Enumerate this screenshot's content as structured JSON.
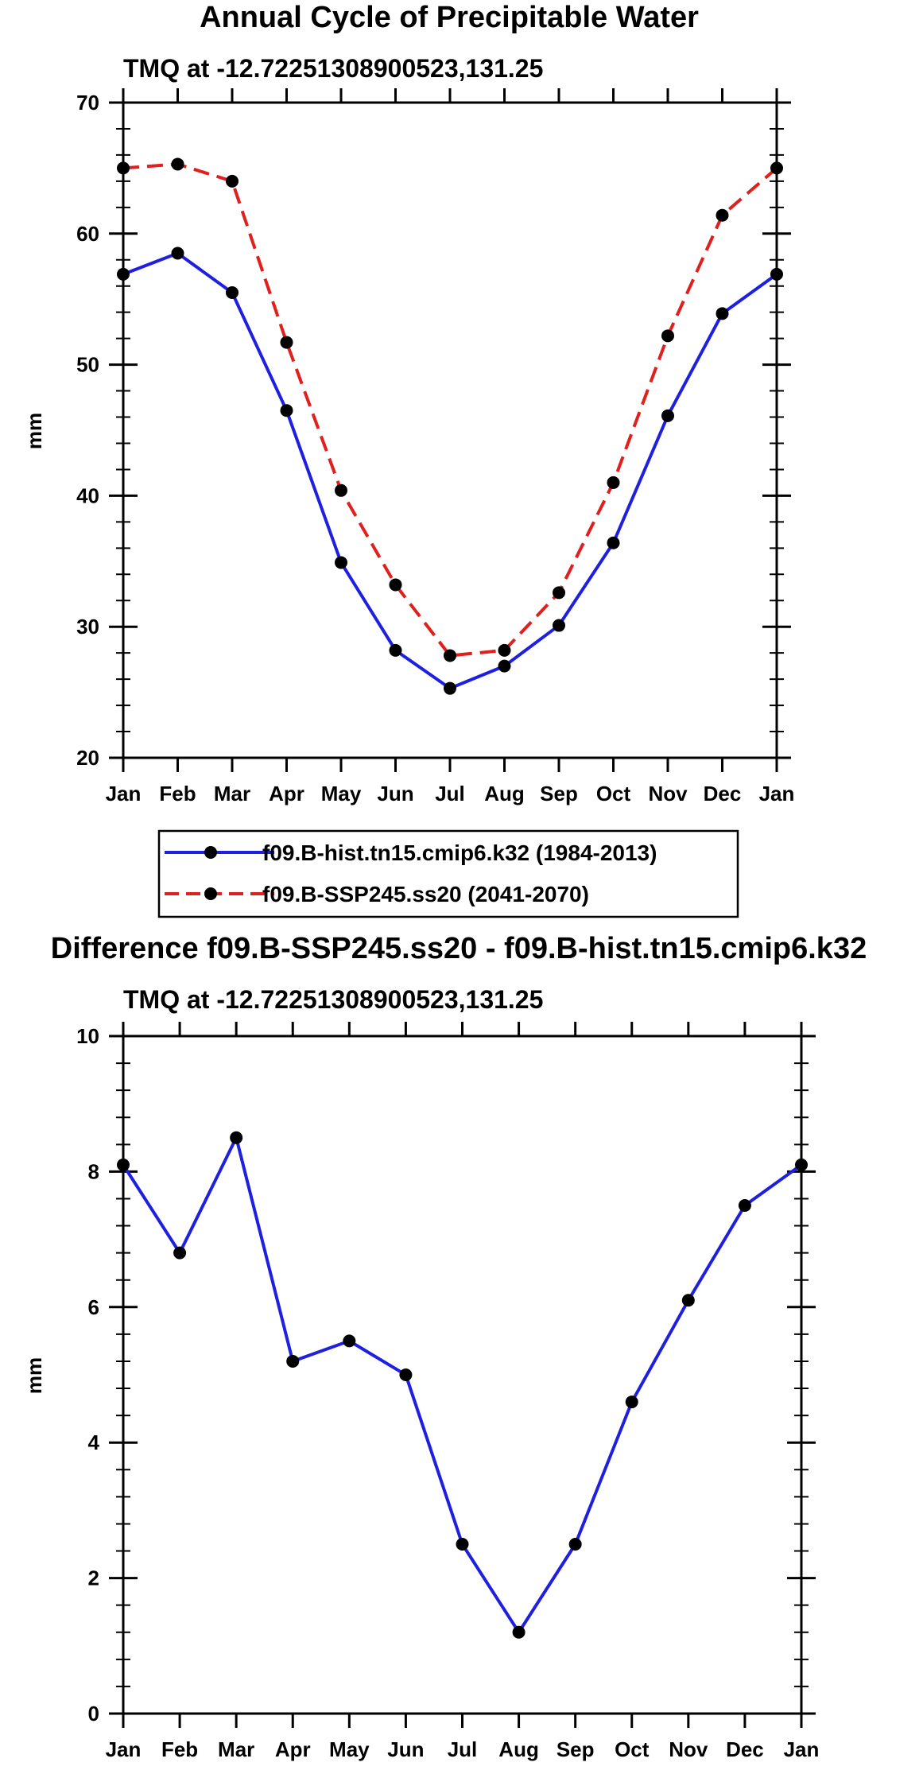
{
  "figure": {
    "title": "Annual Cycle of Precipitable Water"
  },
  "legend": {
    "items": [
      {
        "label": "f09.B-hist.tn15.cmip6.k32 (1984-2013)",
        "color": "#1f1fe0",
        "dash": "solid"
      },
      {
        "label": "f09.B-SSP245.ss20 (2041-2070)",
        "color": "#e01f1f",
        "dash": "dashed"
      }
    ]
  },
  "chart_data": [
    {
      "type": "line",
      "id": "annual-cycle",
      "title": "",
      "subtitle": "TMQ at -12.72251308900523,131.25",
      "xlabel": "",
      "ylabel": "mm",
      "categories": [
        "Jan",
        "Feb",
        "Mar",
        "Apr",
        "May",
        "Jun",
        "Jul",
        "Aug",
        "Sep",
        "Oct",
        "Nov",
        "Dec",
        "Jan"
      ],
      "ylim": [
        20,
        70
      ],
      "yticks": [
        20,
        30,
        40,
        50,
        60,
        70
      ],
      "series": [
        {
          "name": "f09.B-hist.tn15.cmip6.k32 (1984-2013)",
          "color": "#1f1fe0",
          "dash": "solid",
          "values": [
            56.9,
            58.5,
            55.5,
            46.5,
            34.9,
            28.2,
            25.3,
            27.0,
            30.1,
            36.4,
            46.1,
            53.9,
            56.9
          ]
        },
        {
          "name": "f09.B-SSP245.ss20 (2041-2070)",
          "color": "#e01f1f",
          "dash": "dashed",
          "values": [
            65.0,
            65.3,
            64.0,
            51.7,
            40.4,
            33.2,
            27.8,
            28.2,
            32.6,
            41.0,
            52.2,
            61.4,
            65.0
          ]
        }
      ]
    },
    {
      "type": "line",
      "id": "difference",
      "title": "Difference f09.B-SSP245.ss20 - f09.B-hist.tn15.cmip6.k32",
      "subtitle": "TMQ at -12.72251308900523,131.25",
      "xlabel": "",
      "ylabel": "mm",
      "categories": [
        "Jan",
        "Feb",
        "Mar",
        "Apr",
        "May",
        "Jun",
        "Jul",
        "Aug",
        "Sep",
        "Oct",
        "Nov",
        "Dec",
        "Jan"
      ],
      "ylim": [
        0,
        10
      ],
      "yticks": [
        0,
        2,
        4,
        6,
        8,
        10
      ],
      "series": [
        {
          "name": "difference",
          "color": "#1f1fe0",
          "dash": "solid",
          "values": [
            8.1,
            6.8,
            8.5,
            5.2,
            5.5,
            5.0,
            2.5,
            1.2,
            2.5,
            4.6,
            6.1,
            7.5,
            8.1
          ]
        }
      ]
    }
  ]
}
